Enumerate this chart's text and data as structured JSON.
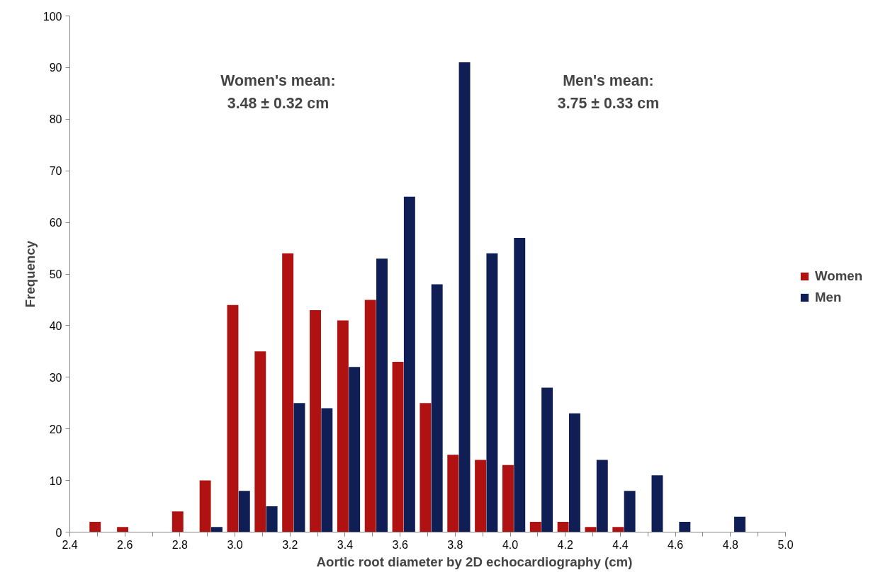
{
  "chart_data": {
    "type": "bar",
    "xlabel": "Aortic root diameter by 2D echocardiography (cm)",
    "ylabel": "Frequency",
    "x": [
      2.5,
      2.6,
      2.7,
      2.8,
      2.9,
      3.0,
      3.1,
      3.2,
      3.3,
      3.4,
      3.5,
      3.6,
      3.7,
      3.8,
      3.9,
      4.0,
      4.1,
      4.2,
      4.3,
      4.4,
      4.5,
      4.6,
      4.7,
      4.8
    ],
    "series": [
      {
        "name": "Women",
        "color": "#b01212",
        "values": [
          2,
          1,
          0,
          4,
          10,
          44,
          35,
          54,
          43,
          41,
          45,
          33,
          25,
          15,
          14,
          13,
          2,
          2,
          1,
          1,
          0,
          0,
          0,
          0
        ]
      },
      {
        "name": "Men",
        "color": "#0f1f55",
        "values": [
          0,
          0,
          0,
          0,
          1,
          8,
          5,
          25,
          24,
          32,
          53,
          65,
          48,
          91,
          54,
          57,
          28,
          23,
          14,
          8,
          11,
          2,
          0,
          3
        ]
      }
    ],
    "xlim": [
      2.4,
      5.0
    ],
    "xticks": [
      2.4,
      2.6,
      2.8,
      {
        "value": 3,
        "label": "3.0"
      },
      3.2,
      3.4,
      3.6,
      3.8,
      {
        "value": 4,
        "label": "4.0"
      },
      4.2,
      4.4,
      4.6,
      4.8,
      {
        "value": 5,
        "label": "5.0"
      }
    ],
    "ylim": [
      0,
      100
    ],
    "yticks": [
      0,
      10,
      20,
      30,
      40,
      50,
      60,
      70,
      80,
      90,
      100
    ],
    "annotations": [
      "Women's mean:\n3.48 ± 0.32 cm",
      "Men's mean:\n3.75 ± 0.33 cm"
    ],
    "legend": "right",
    "grid": false
  }
}
